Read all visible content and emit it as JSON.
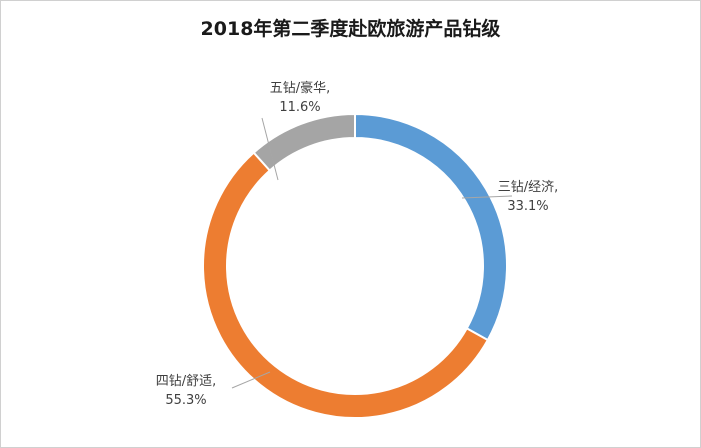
{
  "chart_data": {
    "type": "pie",
    "variant": "doughnut",
    "title": "2018年第二季度赴欧旅游产品钻级",
    "slices": [
      {
        "label": "三钻/经济",
        "value": 33.1,
        "value_text": "33.1%",
        "color": "#5b9bd5"
      },
      {
        "label": "四钻/舒适",
        "value": 55.3,
        "value_text": "55.3%",
        "color": "#ed7d31"
      },
      {
        "label": "五钻/豪华",
        "value": 11.6,
        "value_text": "11.6%",
        "color": "#a5a5a5"
      }
    ],
    "legend": "none"
  }
}
